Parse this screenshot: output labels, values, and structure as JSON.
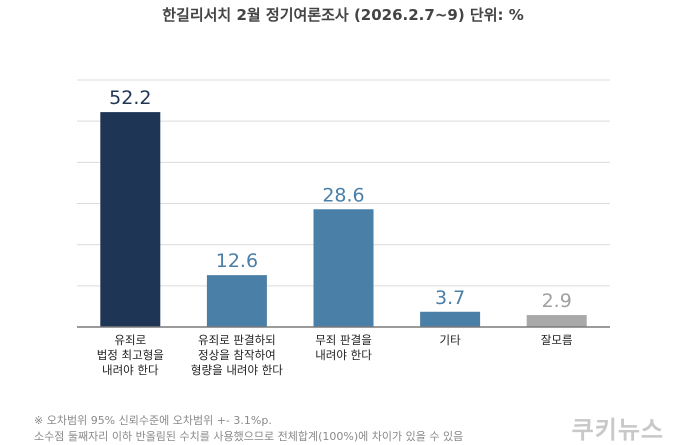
{
  "chart_data": {
    "type": "bar",
    "title": "한길리서치 2월 정기여론조사 (2026.2.7~9) 단위: %",
    "categories": [
      [
        "유죄로",
        "법정 최고형을",
        "내려야 한다"
      ],
      [
        "유죄로 판결하되",
        "정상을 참작하여",
        "형량을 내려야 한다"
      ],
      [
        "무죄 판결을",
        "내려야 한다"
      ],
      [
        "기타"
      ],
      [
        "잘모름"
      ]
    ],
    "values": [
      52.2,
      12.6,
      28.6,
      3.7,
      2.9
    ],
    "value_labels": [
      "52.2",
      "12.6",
      "28.6",
      "3.7",
      "2.9"
    ],
    "ylim": [
      0,
      60
    ],
    "grid": true,
    "xlabel": "",
    "ylabel": "",
    "colors": [
      "#1f3556",
      "#4a7fa8",
      "#4a7fa8",
      "#4a7fa8",
      "#a9a9a9"
    ],
    "label_colors": [
      "#1f3556",
      "#4a7fa8",
      "#4a7fa8",
      "#4a7fa8",
      "#a0a0a0"
    ]
  },
  "footnotes": {
    "line1": "※ 오차범위 95% 신뢰수준에 오차범위 +- 3.1%p.",
    "line2": "소수점 둘째자리 이하 반올림된 수치를 사용했으므로 전체합계(100%)에 차이가 있을 수 있음"
  },
  "brand": "쿠키뉴스"
}
